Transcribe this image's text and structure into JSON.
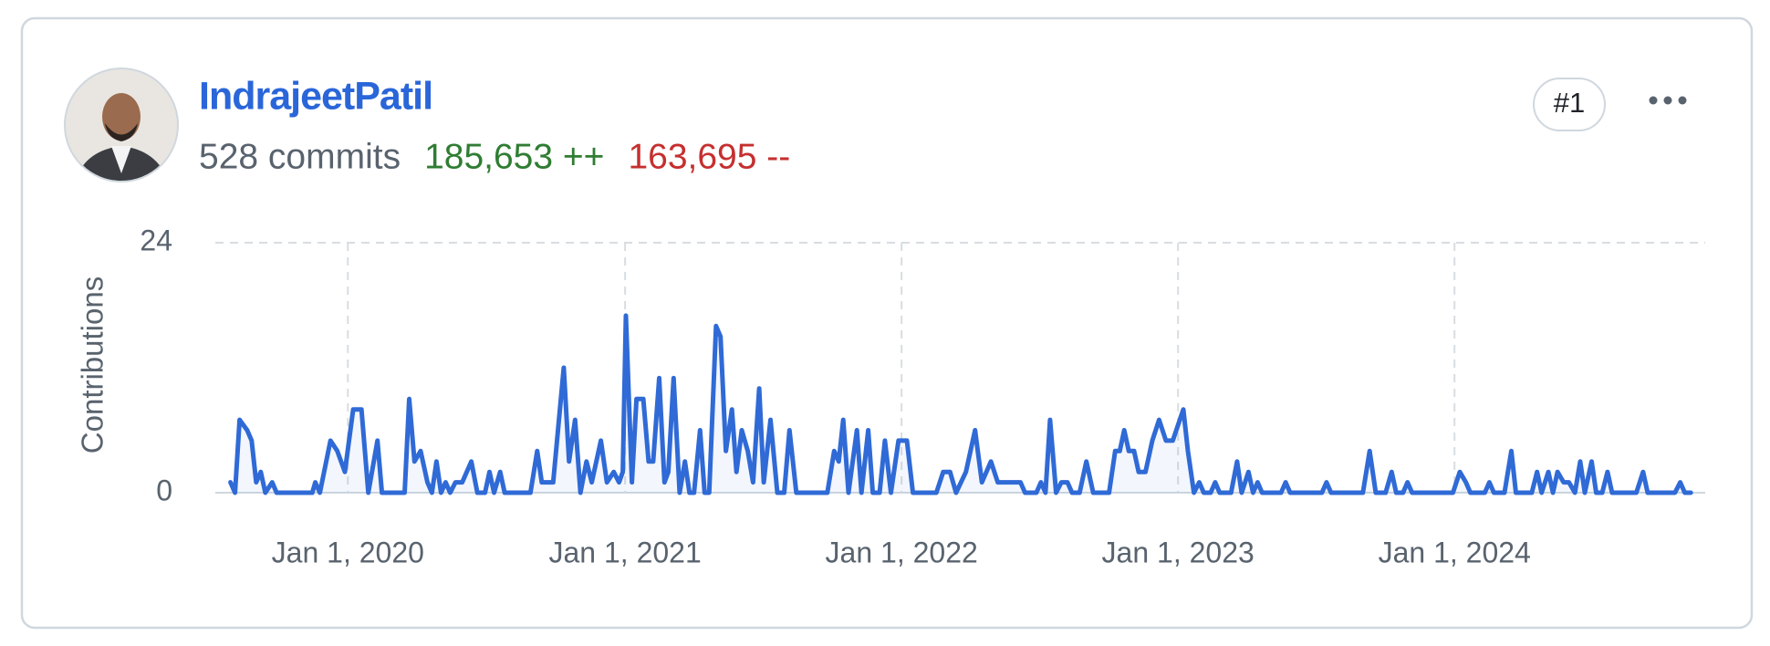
{
  "user": {
    "name": "IndrajeetPatil",
    "commits": "528 commits",
    "additions": "185,653 ++",
    "deletions": "163,695 --",
    "rank": "#1"
  },
  "chart_data": {
    "type": "line",
    "y_label": "Contributions",
    "color": "#2f6ad6",
    "grid": true,
    "xlim": [
      "2019-07-10",
      "2024-11-27"
    ],
    "xticks": [
      {
        "value": "2020-01-01",
        "label": "Jan 1, 2020"
      },
      {
        "value": "2021-01-01",
        "label": "Jan 1, 2021"
      },
      {
        "value": "2022-01-01",
        "label": "Jan 1, 2022"
      },
      {
        "value": "2023-01-01",
        "label": "Jan 1, 2023"
      },
      {
        "value": "2024-01-01",
        "label": "Jan 1, 2024"
      }
    ],
    "ylim": [
      0,
      24
    ],
    "yticks": [
      0,
      24
    ],
    "x": [
      "2019-07-30",
      "2019-08-05",
      "2019-08-11",
      "2019-08-21",
      "2019-08-27",
      "2019-09-02",
      "2019-09-08",
      "2019-09-14",
      "2019-09-23",
      "2019-09-29",
      "2019-11-15",
      "2019-11-19",
      "2019-11-25",
      "2019-12-09",
      "2019-12-18",
      "2019-12-28",
      "2020-01-08",
      "2020-01-19",
      "2020-01-28",
      "2020-02-09",
      "2020-02-15",
      "2020-03-16",
      "2020-03-22",
      "2020-03-29",
      "2020-04-06",
      "2020-04-15",
      "2020-04-21",
      "2020-04-27",
      "2020-05-03",
      "2020-05-09",
      "2020-05-15",
      "2020-05-22",
      "2020-05-31",
      "2020-06-12",
      "2020-06-20",
      "2020-06-30",
      "2020-07-06",
      "2020-07-12",
      "2020-07-20",
      "2020-07-26",
      "2020-08-29",
      "2020-09-07",
      "2020-09-13",
      "2020-09-28",
      "2020-10-12",
      "2020-10-19",
      "2020-10-27",
      "2020-11-03",
      "2020-11-11",
      "2020-11-18",
      "2020-11-30",
      "2020-12-08",
      "2020-12-17",
      "2020-12-24",
      "2020-12-29",
      "2021-01-02",
      "2021-01-10",
      "2021-01-16",
      "2021-01-25",
      "2021-02-01",
      "2021-02-07",
      "2021-02-15",
      "2021-02-22",
      "2021-02-27",
      "2021-03-06",
      "2021-03-14",
      "2021-03-21",
      "2021-03-27",
      "2021-04-02",
      "2021-04-10",
      "2021-04-16",
      "2021-04-22",
      "2021-05-01",
      "2021-05-07",
      "2021-05-14",
      "2021-05-22",
      "2021-05-28",
      "2021-06-04",
      "2021-06-12",
      "2021-06-19",
      "2021-06-27",
      "2021-07-03",
      "2021-07-12",
      "2021-07-21",
      "2021-07-30",
      "2021-08-06",
      "2021-08-15",
      "2021-09-25",
      "2021-10-04",
      "2021-10-10",
      "2021-10-16",
      "2021-10-23",
      "2021-11-03",
      "2021-11-09",
      "2021-11-18",
      "2021-11-24",
      "2021-12-03",
      "2021-12-10",
      "2021-12-18",
      "2021-12-28",
      "2022-01-08",
      "2022-01-16",
      "2022-02-16",
      "2022-02-25",
      "2022-03-06",
      "2022-03-14",
      "2022-03-27",
      "2022-04-08",
      "2022-04-17",
      "2022-04-29",
      "2022-05-08",
      "2022-06-07",
      "2022-06-13",
      "2022-06-28",
      "2022-07-04",
      "2022-07-10",
      "2022-07-16",
      "2022-07-24",
      "2022-07-31",
      "2022-08-08",
      "2022-08-14",
      "2022-08-24",
      "2022-09-02",
      "2022-09-11",
      "2022-10-02",
      "2022-10-10",
      "2022-10-16",
      "2022-10-22",
      "2022-10-28",
      "2022-11-04",
      "2022-11-10",
      "2022-11-19",
      "2022-11-28",
      "2022-12-07",
      "2022-12-16",
      "2022-12-25",
      "2023-01-08",
      "2023-01-14",
      "2023-01-22",
      "2023-01-29",
      "2023-02-04",
      "2023-02-13",
      "2023-02-19",
      "2023-02-25",
      "2023-03-12",
      "2023-03-20",
      "2023-03-26",
      "2023-04-04",
      "2023-04-10",
      "2023-04-16",
      "2023-04-22",
      "2023-05-17",
      "2023-05-23",
      "2023-05-29",
      "2023-07-10",
      "2023-07-16",
      "2023-07-22",
      "2023-09-02",
      "2023-09-11",
      "2023-09-19",
      "2023-10-02",
      "2023-10-10",
      "2023-10-16",
      "2023-10-25",
      "2023-10-31",
      "2023-11-06",
      "2023-12-30",
      "2024-01-08",
      "2024-01-16",
      "2024-01-22",
      "2024-02-10",
      "2024-02-16",
      "2024-02-22",
      "2024-03-07",
      "2024-03-16",
      "2024-03-22",
      "2024-04-12",
      "2024-04-19",
      "2024-04-25",
      "2024-05-04",
      "2024-05-10",
      "2024-05-16",
      "2024-05-24",
      "2024-05-31",
      "2024-06-08",
      "2024-06-15",
      "2024-06-21",
      "2024-06-30",
      "2024-07-06",
      "2024-07-14",
      "2024-07-21",
      "2024-07-27",
      "2024-08-28",
      "2024-09-06",
      "2024-09-12",
      "2024-10-18",
      "2024-10-25",
      "2024-10-31",
      "2024-11-08"
    ],
    "values": [
      1,
      0,
      7,
      6,
      5,
      1,
      2,
      0,
      1,
      0,
      0,
      1,
      0,
      5,
      4,
      2,
      8,
      8,
      0,
      5,
      0,
      0,
      9,
      3,
      4,
      1,
      0,
      3,
      0,
      1,
      0,
      1,
      1,
      3,
      0,
      0,
      2,
      0,
      2,
      0,
      0,
      4,
      1,
      1,
      12,
      3,
      7,
      0,
      3,
      1,
      5,
      1,
      2,
      1,
      2,
      17,
      1,
      9,
      9,
      3,
      3,
      11,
      1,
      2,
      11,
      0,
      3,
      0,
      0,
      6,
      0,
      0,
      16,
      15,
      4,
      8,
      2,
      6,
      4,
      1,
      10,
      1,
      7,
      0,
      0,
      6,
      0,
      0,
      4,
      3,
      7,
      0,
      6,
      0,
      6,
      0,
      0,
      5,
      0,
      5,
      5,
      0,
      0,
      2,
      2,
      0,
      2,
      6,
      1,
      3,
      1,
      1,
      0,
      0,
      1,
      0,
      7,
      0,
      1,
      1,
      0,
      0,
      3,
      0,
      0,
      4,
      4,
      6,
      4,
      4,
      2,
      2,
      5,
      7,
      5,
      5,
      8,
      4,
      0,
      1,
      0,
      0,
      1,
      0,
      0,
      3,
      0,
      2,
      0,
      1,
      0,
      0,
      1,
      0,
      0,
      1,
      0,
      0,
      4,
      0,
      0,
      2,
      0,
      0,
      1,
      0,
      0,
      2,
      1,
      0,
      0,
      1,
      0,
      0,
      4,
      0,
      0,
      2,
      0,
      2,
      0,
      2,
      1,
      1,
      0,
      3,
      0,
      3,
      0,
      0,
      2,
      0,
      0,
      2,
      0,
      0,
      1,
      0,
      0
    ]
  }
}
